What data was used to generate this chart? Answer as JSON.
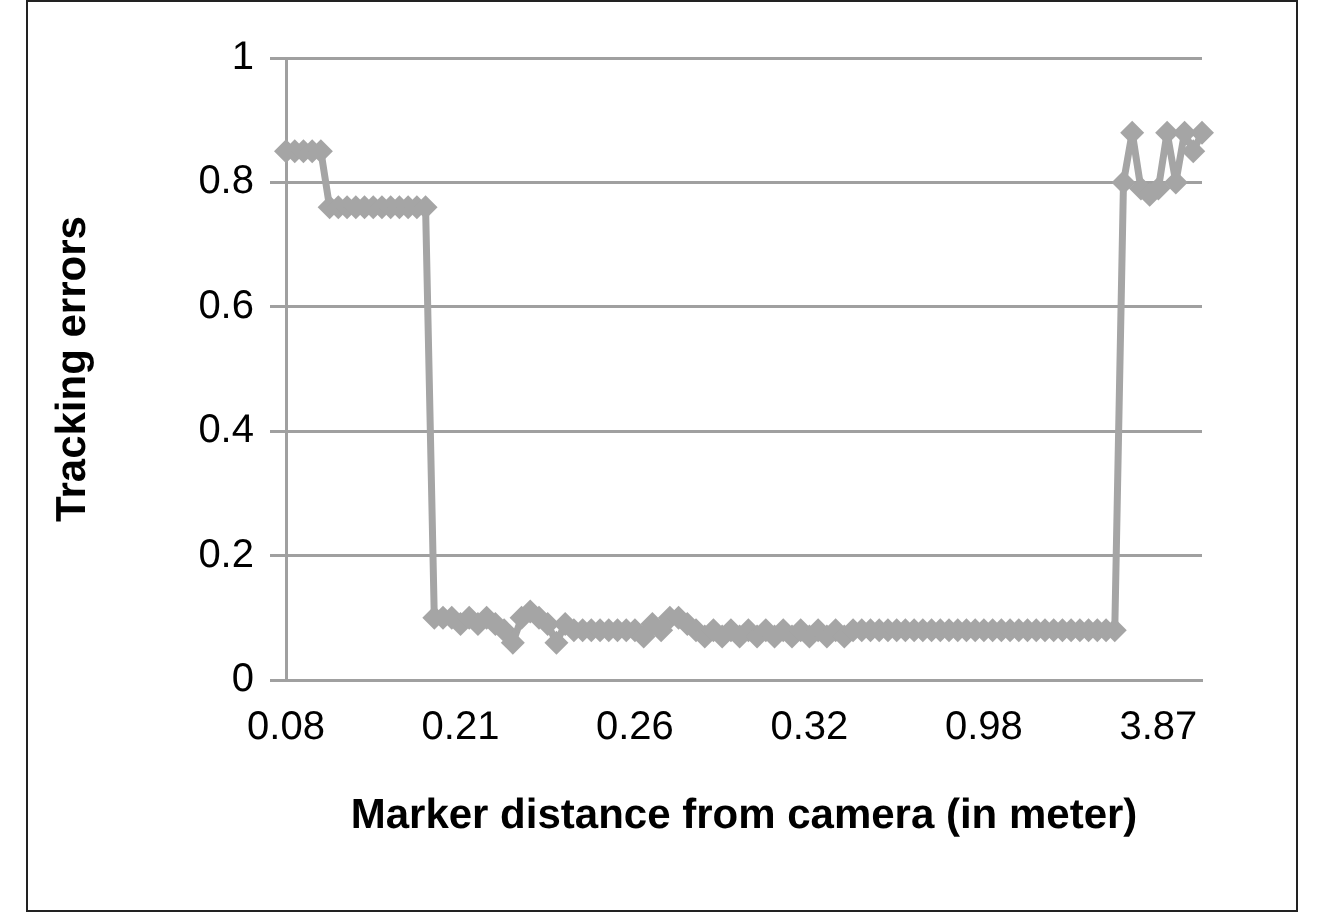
{
  "chart_data": {
    "type": "line",
    "xlabel": "Marker distance from camera (in meter)",
    "ylabel": "Tracking errors",
    "categories": [
      "0.08",
      null,
      null,
      null,
      null,
      null,
      null,
      null,
      null,
      null,
      null,
      null,
      null,
      null,
      null,
      null,
      null,
      null,
      null,
      null,
      "0.21",
      null,
      null,
      null,
      null,
      null,
      null,
      null,
      null,
      null,
      null,
      null,
      null,
      null,
      null,
      null,
      null,
      null,
      null,
      null,
      "0.26",
      null,
      null,
      null,
      null,
      null,
      null,
      null,
      null,
      null,
      null,
      null,
      null,
      null,
      null,
      null,
      null,
      null,
      null,
      null,
      "0.32",
      null,
      null,
      null,
      null,
      null,
      null,
      null,
      null,
      null,
      null,
      null,
      null,
      null,
      null,
      null,
      null,
      null,
      null,
      null,
      "0.98",
      null,
      null,
      null,
      null,
      null,
      null,
      null,
      null,
      null,
      null,
      null,
      null,
      null,
      null,
      null,
      null,
      null,
      null,
      null,
      "3.87",
      null,
      null,
      null,
      null,
      null
    ],
    "series": [
      {
        "color": "#a5a5a5",
        "values": [
          0.85,
          0.85,
          0.85,
          0.85,
          0.85,
          0.76,
          0.76,
          0.76,
          0.76,
          0.76,
          0.76,
          0.76,
          0.76,
          0.76,
          0.76,
          0.76,
          0.76,
          0.1,
          0.1,
          0.1,
          0.09,
          0.1,
          0.09,
          0.1,
          0.09,
          0.08,
          0.06,
          0.1,
          0.11,
          0.1,
          0.09,
          0.06,
          0.09,
          0.08,
          0.08,
          0.08,
          0.08,
          0.08,
          0.08,
          0.08,
          0.08,
          0.07,
          0.09,
          0.08,
          0.1,
          0.1,
          0.09,
          0.08,
          0.07,
          0.08,
          0.07,
          0.08,
          0.07,
          0.08,
          0.07,
          0.08,
          0.07,
          0.08,
          0.07,
          0.08,
          0.07,
          0.08,
          0.07,
          0.08,
          0.07,
          0.08,
          0.08,
          0.08,
          0.08,
          0.08,
          0.08,
          0.08,
          0.08,
          0.08,
          0.08,
          0.08,
          0.08,
          0.08,
          0.08,
          0.08,
          0.08,
          0.08,
          0.08,
          0.08,
          0.08,
          0.08,
          0.08,
          0.08,
          0.08,
          0.08,
          0.08,
          0.08,
          0.08,
          0.08,
          0.08,
          0.08,
          0.8,
          0.88,
          0.79,
          0.78,
          0.79,
          0.88,
          0.8,
          0.88,
          0.85,
          0.88
        ]
      }
    ],
    "ylim": [
      0,
      1
    ],
    "yticks": [
      0,
      0.2,
      0.4,
      0.6,
      0.8,
      1
    ],
    "grid": "y",
    "legend": false,
    "marker": "diamond",
    "line_style": "solid"
  }
}
